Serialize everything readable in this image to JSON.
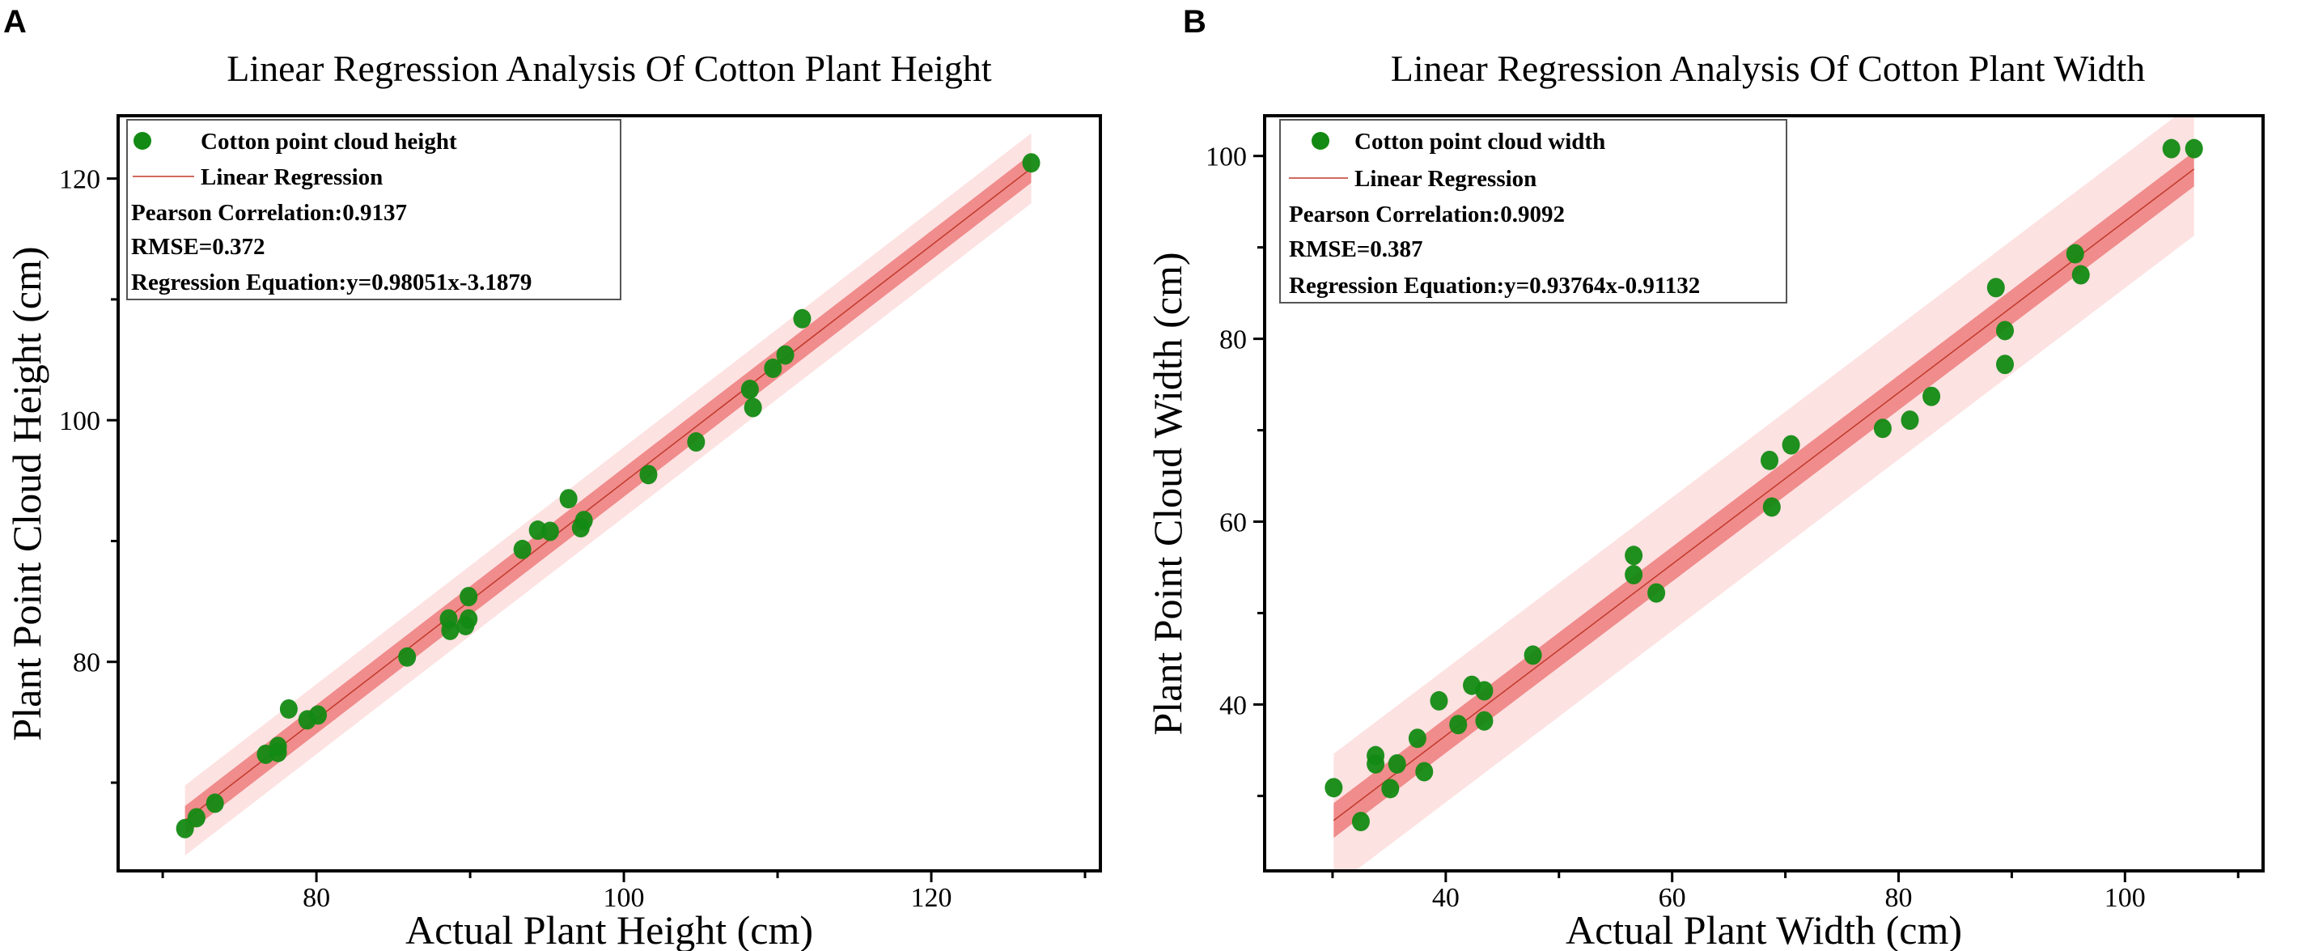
{
  "chart_data": [
    {
      "type": "scatter",
      "panel_label": "A",
      "title": "Linear Regression Analysis Of Cotton Plant Height",
      "xlabel": "Actual Plant Height (cm)",
      "ylabel": "Plant Point Cloud Height (cm)",
      "xlim": [
        67.1,
        131.0
      ],
      "ylim": [
        62.7,
        125.2
      ],
      "xticks": [
        80,
        100,
        120
      ],
      "yticks": [
        80,
        100,
        120
      ],
      "minor_step": 10,
      "legend": {
        "position": "top-left",
        "scatter_label": "Cotton point cloud height",
        "line_label": "Linear Regression",
        "pearson": "Pearson Correlation:0.9137",
        "rmse": "RMSE=0.372",
        "equation": "Regression Equation:y=0.98051x-3.1879"
      },
      "regression": {
        "slope": 0.98051,
        "intercept": -3.1879,
        "x_range": [
          71.45,
          126.5
        ],
        "inner_band": 1.2,
        "outer_band": 2.9
      },
      "points": [
        [
          71.45,
          66.2
        ],
        [
          72.2,
          67.1
        ],
        [
          73.4,
          68.3
        ],
        [
          76.7,
          72.35
        ],
        [
          77.5,
          73.0
        ],
        [
          77.5,
          72.5
        ],
        [
          78.2,
          76.1
        ],
        [
          79.4,
          75.2
        ],
        [
          80.1,
          75.6
        ],
        [
          85.9,
          80.4
        ],
        [
          88.6,
          83.55
        ],
        [
          88.7,
          82.6
        ],
        [
          89.7,
          83.0
        ],
        [
          89.9,
          83.55
        ],
        [
          89.9,
          85.4
        ],
        [
          93.4,
          89.3
        ],
        [
          94.4,
          90.9
        ],
        [
          95.2,
          90.8
        ],
        [
          96.4,
          93.5
        ],
        [
          97.2,
          91.1
        ],
        [
          97.4,
          91.7
        ],
        [
          101.6,
          95.5
        ],
        [
          104.7,
          98.2
        ],
        [
          108.2,
          102.55
        ],
        [
          108.4,
          101.05
        ],
        [
          109.7,
          104.3
        ],
        [
          110.5,
          105.4
        ],
        [
          111.6,
          108.4
        ],
        [
          126.5,
          121.3
        ]
      ]
    },
    {
      "type": "scatter",
      "panel_label": "B",
      "title": "Linear Regression Analysis Of Cotton Plant Width",
      "xlabel": "Actual Plant Width (cm)",
      "ylabel": "Plant Point Cloud Width (cm)",
      "xlim": [
        24.0,
        112.2
      ],
      "ylim": [
        21.8,
        104.4
      ],
      "xticks": [
        40,
        60,
        80,
        100
      ],
      "yticks": [
        40,
        60,
        80,
        100
      ],
      "minor_step": 10,
      "legend": {
        "position": "top-left",
        "scatter_label": "Cotton point cloud width",
        "line_label": "Linear Regression",
        "pearson": "Pearson Correlation:0.9092",
        "rmse": "RMSE=0.387",
        "equation": "Regression Equation:y=0.93764x-0.91132"
      },
      "regression": {
        "slope": 0.93764,
        "intercept": -0.91132,
        "x_range": [
          30.1,
          106.1
        ],
        "inner_band": 1.9,
        "outer_band": 7.3
      },
      "points": [
        [
          30.1,
          30.9
        ],
        [
          32.5,
          27.2
        ],
        [
          33.8,
          34.4
        ],
        [
          33.8,
          33.5
        ],
        [
          35.1,
          30.8
        ],
        [
          35.7,
          33.5
        ],
        [
          37.5,
          36.3
        ],
        [
          38.1,
          32.65
        ],
        [
          39.4,
          40.4
        ],
        [
          41.1,
          37.8
        ],
        [
          42.3,
          42.1
        ],
        [
          43.4,
          38.2
        ],
        [
          43.4,
          41.5
        ],
        [
          47.7,
          45.4
        ],
        [
          56.6,
          56.3
        ],
        [
          56.6,
          54.2
        ],
        [
          58.6,
          52.2
        ],
        [
          68.6,
          66.7
        ],
        [
          68.8,
          61.6
        ],
        [
          70.5,
          68.4
        ],
        [
          78.6,
          70.2
        ],
        [
          81.0,
          71.1
        ],
        [
          82.9,
          73.7
        ],
        [
          88.6,
          85.6
        ],
        [
          89.4,
          80.9
        ],
        [
          89.4,
          77.2
        ],
        [
          95.6,
          89.3
        ],
        [
          96.1,
          87.0
        ],
        [
          104.1,
          100.8
        ],
        [
          106.1,
          100.8
        ]
      ]
    }
  ],
  "colors": {
    "point": "#138a13",
    "line": "#c0392b",
    "inner_band": "#f08c8c",
    "outer_band": "#fde2e2",
    "axis": "#000000"
  }
}
